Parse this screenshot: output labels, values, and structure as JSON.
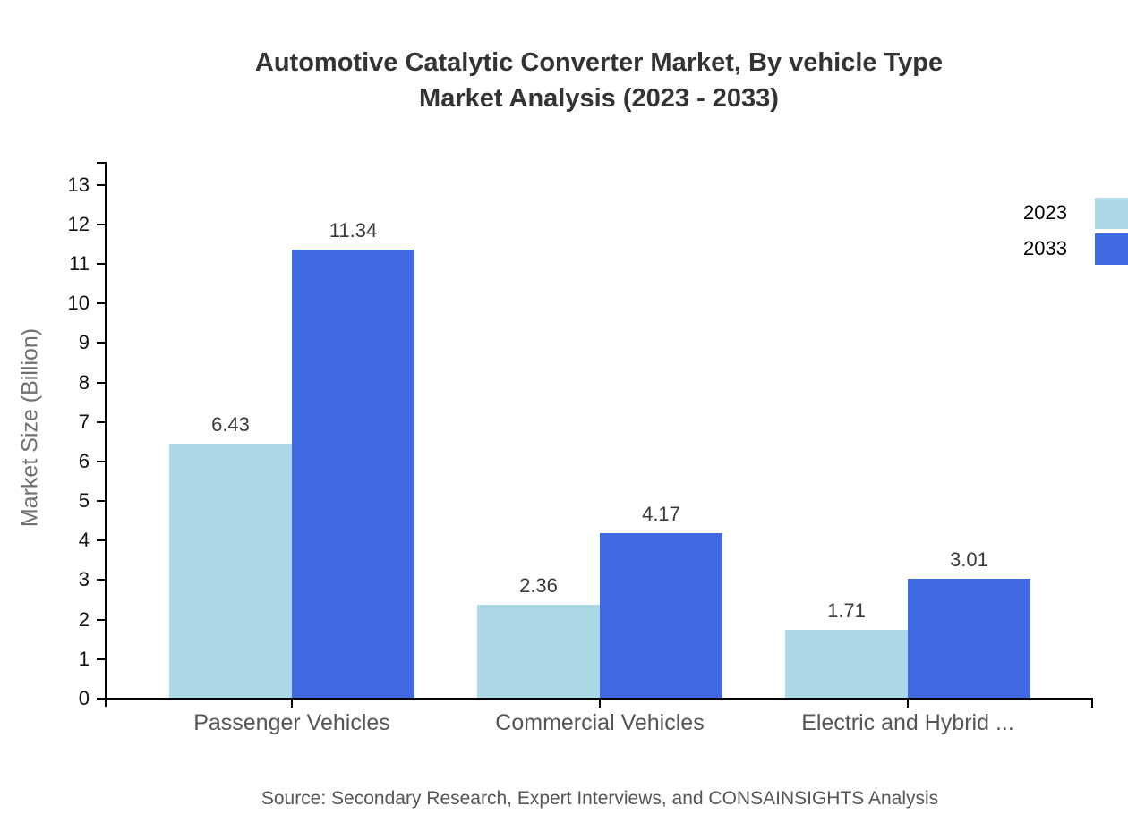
{
  "title": {
    "line1": "Automotive Catalytic Converter Market, By vehicle Type",
    "line2": "Market Analysis (2023 - 2033)"
  },
  "y_axis": {
    "title": "Market Size (Billion)",
    "tick_min": 0,
    "tick_max": 13,
    "tick_step": 1
  },
  "legend": {
    "position": "top-right",
    "items": [
      {
        "label": "2023",
        "color": "#ADD8E6"
      },
      {
        "label": "2033",
        "color": "#4169E1"
      }
    ]
  },
  "source_note": "Source: Secondary Research, Expert Interviews, and CONSAINSIGHTS Analysis",
  "chart_data": {
    "type": "bar",
    "title": "Automotive Catalytic Converter Market, By vehicle Type Market Analysis (2023 - 2033)",
    "categories": [
      "Passenger Vehicles",
      "Commercial Vehicles",
      "Electric and Hybrid ..."
    ],
    "series": [
      {
        "name": "2023",
        "color": "#ADD8E6",
        "values": [
          6.43,
          2.36,
          1.71
        ]
      },
      {
        "name": "2033",
        "color": "#4169E1",
        "values": [
          11.34,
          4.17,
          3.01
        ]
      }
    ],
    "xlabel": "",
    "ylabel": "Market Size (Billion)",
    "ylim": [
      0,
      13.6
    ],
    "grid": false,
    "value_labels": true,
    "legend_position": "top-right"
  }
}
